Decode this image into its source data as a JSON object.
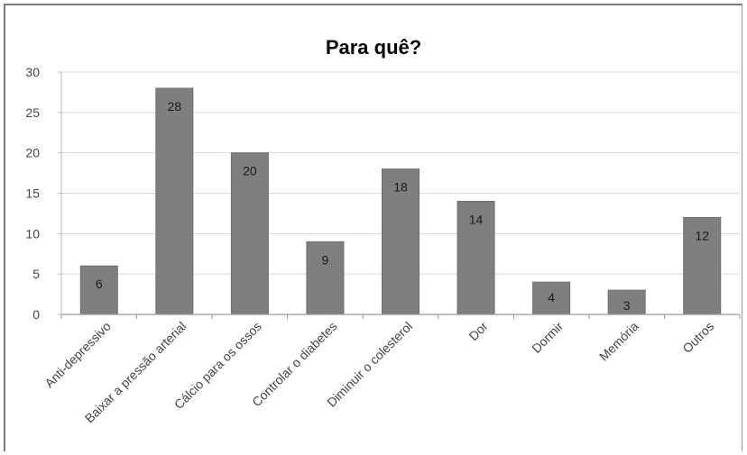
{
  "chart_data": {
    "type": "bar",
    "title": "Para quê?",
    "categories": [
      "Anti-depressivo",
      "Baixar a pressão arterial",
      "Cálcio para os ossos",
      "Controlar o diabetes",
      "Diminuir o colesterol",
      "Dor",
      "Dormir",
      "Memória",
      "Outros"
    ],
    "values": [
      6,
      28,
      20,
      9,
      18,
      14,
      4,
      3,
      12
    ],
    "xlabel": "",
    "ylabel": "",
    "ylim": [
      0,
      30
    ],
    "yticks": [
      0,
      5,
      10,
      15,
      20,
      25,
      30
    ],
    "grid": true,
    "data_labels": true,
    "bar_color": "#7f7f7f",
    "grid_color": "#d9d9d9"
  }
}
